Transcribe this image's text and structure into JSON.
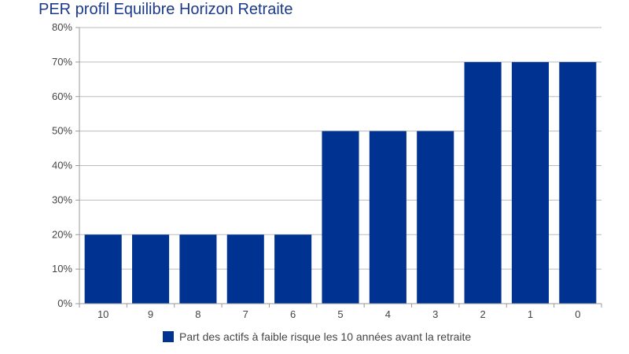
{
  "chart_data": {
    "type": "bar",
    "title": "PER profil Equilibre Horizon Retraite",
    "categories": [
      "10",
      "9",
      "8",
      "7",
      "6",
      "5",
      "4",
      "3",
      "2",
      "1",
      "0"
    ],
    "series": [
      {
        "name": "Part des actifs à faible risque les 10 années avant la retraite",
        "values": [
          20,
          20,
          20,
          20,
          20,
          50,
          50,
          50,
          70,
          70,
          70
        ],
        "color": "#003391"
      }
    ],
    "ylim": [
      0,
      80
    ],
    "yticks": [
      "0%",
      "10%",
      "20%",
      "30%",
      "40%",
      "50%",
      "60%",
      "70%",
      "80%"
    ],
    "grid": true,
    "legend_position": "bottom"
  }
}
